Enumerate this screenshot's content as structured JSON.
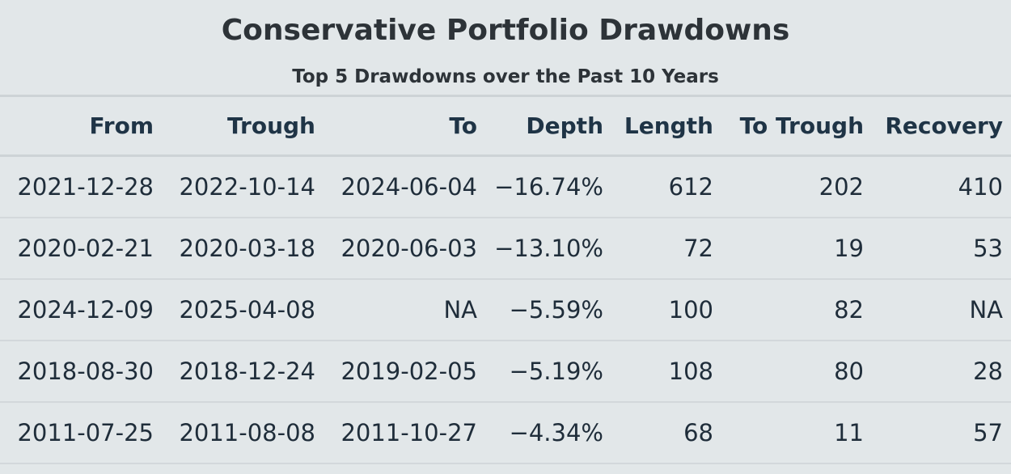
{
  "chart_data": {
    "type": "table",
    "title": "Conservative Portfolio Drawdowns",
    "subtitle": "Top 5 Drawdowns over the Past 10 Years",
    "columns": [
      "From",
      "Trough",
      "To",
      "Depth",
      "Length",
      "To Trough",
      "Recovery"
    ],
    "rows": [
      [
        "2021-12-28",
        "2022-10-14",
        "2024-06-04",
        "−16.74%",
        "612",
        "202",
        "410"
      ],
      [
        "2020-02-21",
        "2020-03-18",
        "2020-06-03",
        "−13.10%",
        "72",
        "19",
        "53"
      ],
      [
        "2024-12-09",
        "2025-04-08",
        "NA",
        "−5.59%",
        "100",
        "82",
        "NA"
      ],
      [
        "2018-08-30",
        "2018-12-24",
        "2019-02-05",
        "−5.19%",
        "108",
        "80",
        "28"
      ],
      [
        "2011-07-25",
        "2011-08-08",
        "2011-10-27",
        "−4.34%",
        "68",
        "11",
        "57"
      ]
    ]
  }
}
